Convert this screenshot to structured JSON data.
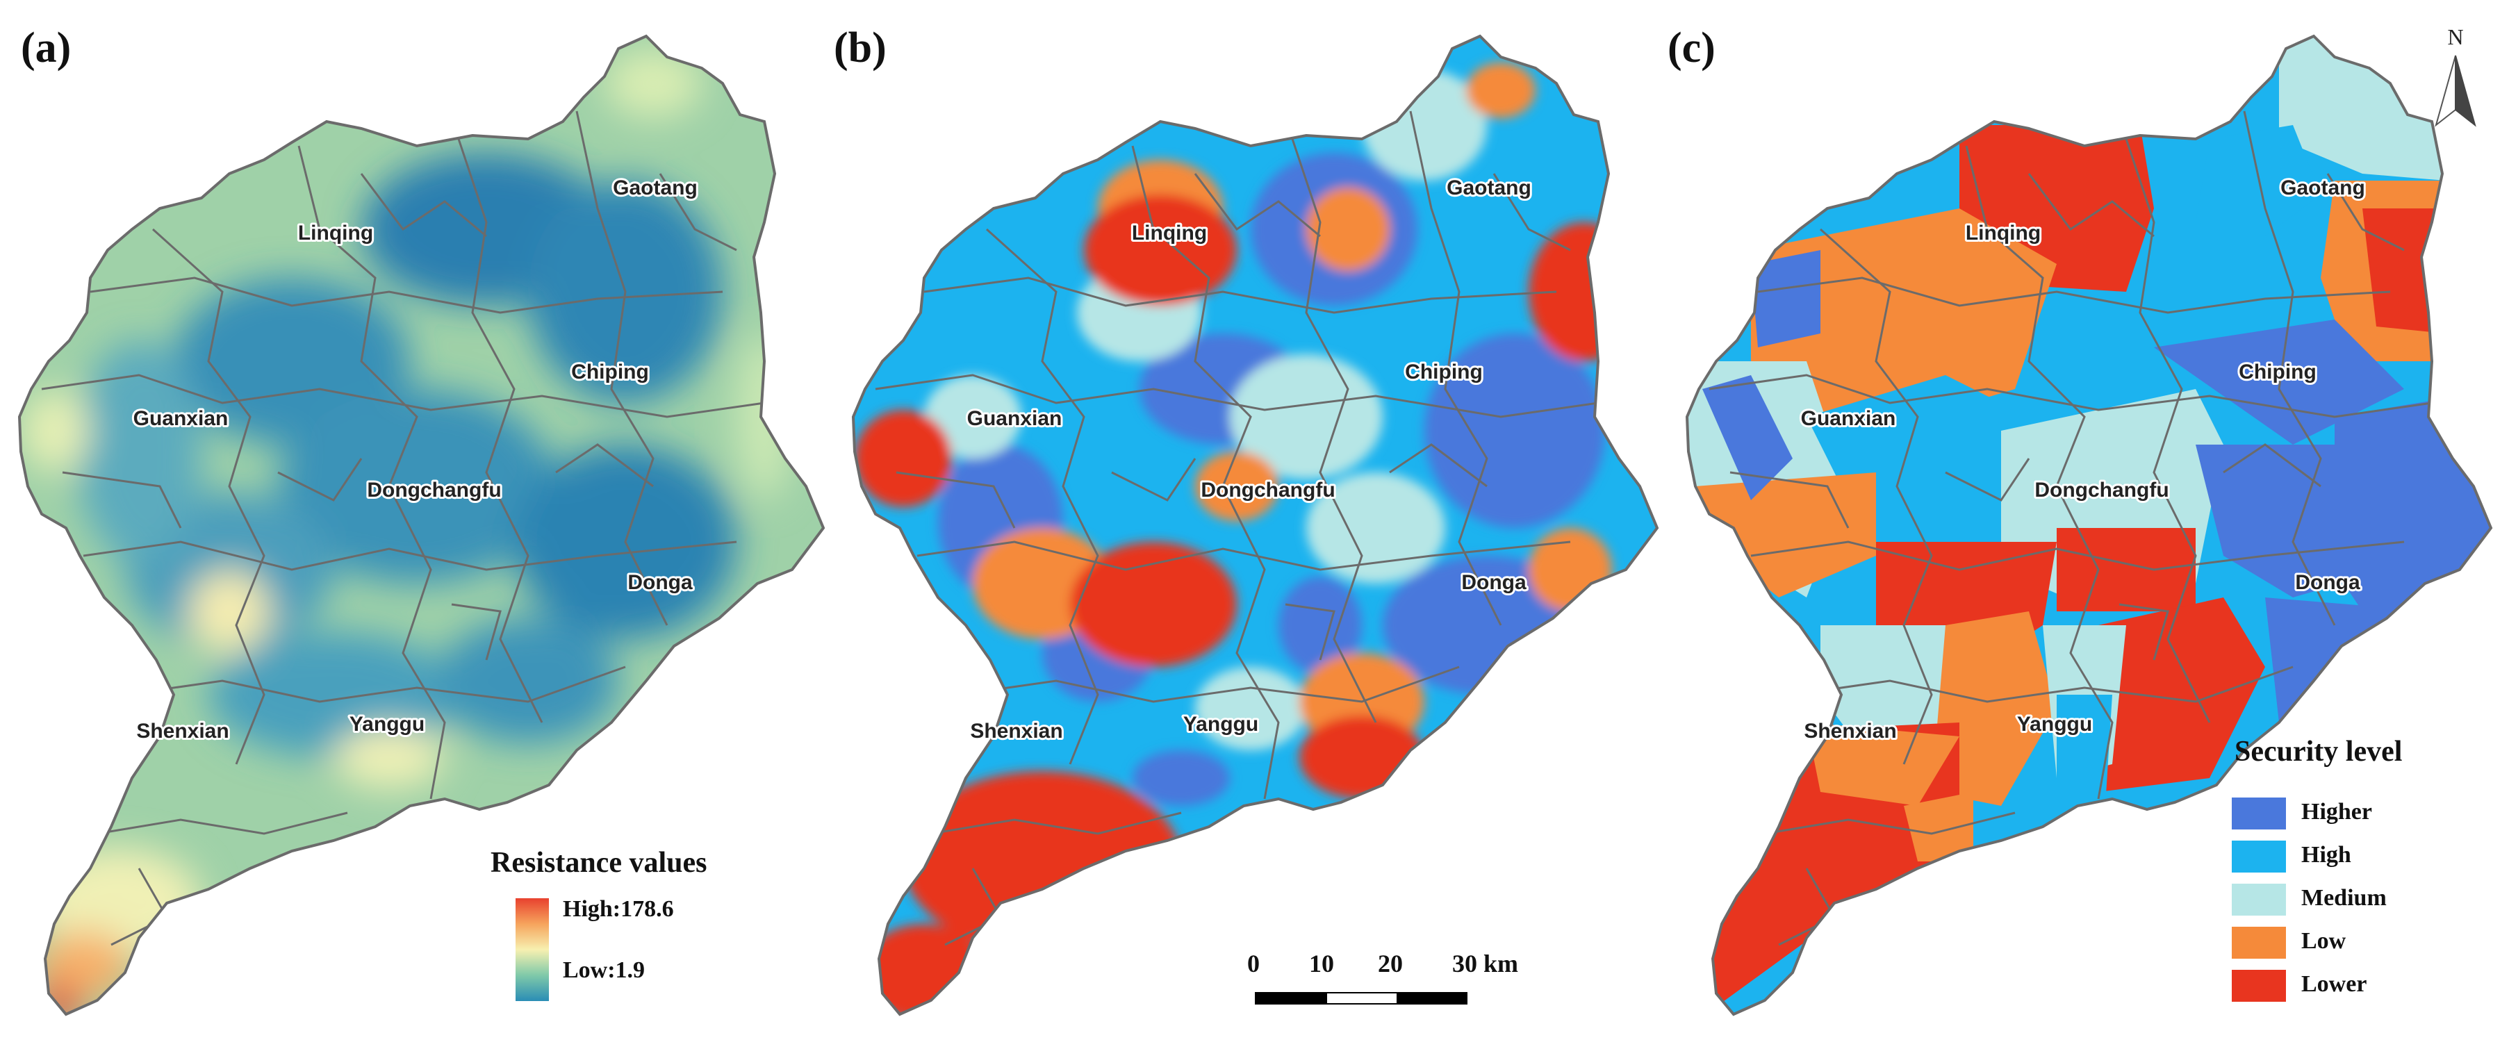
{
  "panels": [
    {
      "letter": "(a)",
      "type": "resistance"
    },
    {
      "letter": "(b)",
      "type": "security-pixels"
    },
    {
      "letter": "(c)",
      "type": "security-regions"
    }
  ],
  "cities": {
    "linqing": "Linqing",
    "gaotang": "Gaotang",
    "chiping": "Chiping",
    "guanxian": "Guanxian",
    "dongchangfu": "Dongchangfu",
    "donga": "Donga",
    "shenxian": "Shenxian",
    "yanggu": "Yanggu"
  },
  "resistance_legend": {
    "title": "Resistance values",
    "high": "High:178.6",
    "low": "Low:1.9",
    "high_value": 178.6,
    "low_value": 1.9
  },
  "security_legend": {
    "title": "Security level",
    "items": [
      {
        "label": "Higher",
        "color": "#4a78dc"
      },
      {
        "label": "High",
        "color": "#1cb3ef"
      },
      {
        "label": "Medium",
        "color": "#b6e6e6"
      },
      {
        "label": "Low",
        "color": "#f58a3a"
      },
      {
        "label": "Lower",
        "color": "#e8351f"
      }
    ]
  },
  "scale": {
    "ticks": [
      "0",
      "10",
      "20",
      "30 km"
    ]
  },
  "north": {
    "label": "N"
  },
  "colors": {
    "boundary": "#6b6b6b",
    "resistance_low": "#2a8db5",
    "resistance_high": "#e8412e"
  }
}
